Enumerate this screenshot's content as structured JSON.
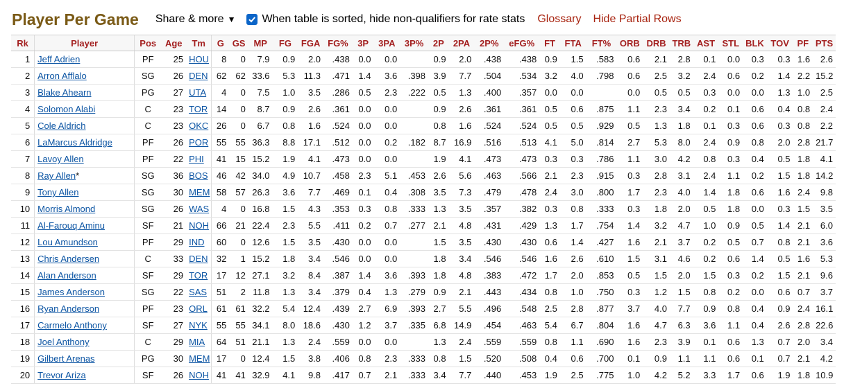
{
  "header": {
    "title": "Player Per Game",
    "share_label": "Share & more",
    "checkbox_label": "When table is sorted, hide non-qualifiers for rate stats",
    "glossary_label": "Glossary",
    "hide_partial_label": "Hide Partial Rows"
  },
  "colors": {
    "title": "#7a5a16",
    "header_text": "#a31f1f",
    "link": "#0b54a3",
    "checkbox": "#0b65c8",
    "top_link": "#a8230f"
  },
  "table": {
    "columns": [
      "Rk",
      "Player",
      "Pos",
      "Age",
      "Tm",
      "G",
      "GS",
      "MP",
      "FG",
      "FGA",
      "FG%",
      "3P",
      "3PA",
      "3P%",
      "2P",
      "2PA",
      "2P%",
      "eFG%",
      "FT",
      "FTA",
      "FT%",
      "ORB",
      "DRB",
      "TRB",
      "AST",
      "STL",
      "BLK",
      "TOV",
      "PF",
      "PTS"
    ],
    "rows": [
      [
        "1",
        "Jeff Adrien",
        "PF",
        "25",
        "HOU",
        "8",
        "0",
        "7.9",
        "0.9",
        "2.0",
        ".438",
        "0.0",
        "0.0",
        "",
        "0.9",
        "2.0",
        ".438",
        ".438",
        "0.9",
        "1.5",
        ".583",
        "0.6",
        "2.1",
        "2.8",
        "0.1",
        "0.0",
        "0.3",
        "0.3",
        "1.6",
        "2.6"
      ],
      [
        "2",
        "Arron Afflalo",
        "SG",
        "26",
        "DEN",
        "62",
        "62",
        "33.6",
        "5.3",
        "11.3",
        ".471",
        "1.4",
        "3.6",
        ".398",
        "3.9",
        "7.7",
        ".504",
        ".534",
        "3.2",
        "4.0",
        ".798",
        "0.6",
        "2.5",
        "3.2",
        "2.4",
        "0.6",
        "0.2",
        "1.4",
        "2.2",
        "15.2"
      ],
      [
        "3",
        "Blake Ahearn",
        "PG",
        "27",
        "UTA",
        "4",
        "0",
        "7.5",
        "1.0",
        "3.5",
        ".286",
        "0.5",
        "2.3",
        ".222",
        "0.5",
        "1.3",
        ".400",
        ".357",
        "0.0",
        "0.0",
        "",
        "0.0",
        "0.5",
        "0.5",
        "0.3",
        "0.0",
        "0.0",
        "1.3",
        "1.0",
        "2.5"
      ],
      [
        "4",
        "Solomon Alabi",
        "C",
        "23",
        "TOR",
        "14",
        "0",
        "8.7",
        "0.9",
        "2.6",
        ".361",
        "0.0",
        "0.0",
        "",
        "0.9",
        "2.6",
        ".361",
        ".361",
        "0.5",
        "0.6",
        ".875",
        "1.1",
        "2.3",
        "3.4",
        "0.2",
        "0.1",
        "0.6",
        "0.4",
        "0.8",
        "2.4"
      ],
      [
        "5",
        "Cole Aldrich",
        "C",
        "23",
        "OKC",
        "26",
        "0",
        "6.7",
        "0.8",
        "1.6",
        ".524",
        "0.0",
        "0.0",
        "",
        "0.8",
        "1.6",
        ".524",
        ".524",
        "0.5",
        "0.5",
        ".929",
        "0.5",
        "1.3",
        "1.8",
        "0.1",
        "0.3",
        "0.6",
        "0.3",
        "0.8",
        "2.2"
      ],
      [
        "6",
        "LaMarcus Aldridge",
        "PF",
        "26",
        "POR",
        "55",
        "55",
        "36.3",
        "8.8",
        "17.1",
        ".512",
        "0.0",
        "0.2",
        ".182",
        "8.7",
        "16.9",
        ".516",
        ".513",
        "4.1",
        "5.0",
        ".814",
        "2.7",
        "5.3",
        "8.0",
        "2.4",
        "0.9",
        "0.8",
        "2.0",
        "2.8",
        "21.7"
      ],
      [
        "7",
        "Lavoy Allen",
        "PF",
        "22",
        "PHI",
        "41",
        "15",
        "15.2",
        "1.9",
        "4.1",
        ".473",
        "0.0",
        "0.0",
        "",
        "1.9",
        "4.1",
        ".473",
        ".473",
        "0.3",
        "0.3",
        ".786",
        "1.1",
        "3.0",
        "4.2",
        "0.8",
        "0.3",
        "0.4",
        "0.5",
        "1.8",
        "4.1"
      ],
      [
        "8",
        "Ray Allen",
        "SG",
        "36",
        "BOS",
        "46",
        "42",
        "34.0",
        "4.9",
        "10.7",
        ".458",
        "2.3",
        "5.1",
        ".453",
        "2.6",
        "5.6",
        ".463",
        ".566",
        "2.1",
        "2.3",
        ".915",
        "0.3",
        "2.8",
        "3.1",
        "2.4",
        "1.1",
        "0.2",
        "1.5",
        "1.8",
        "14.2"
      ],
      [
        "9",
        "Tony Allen",
        "SG",
        "30",
        "MEM",
        "58",
        "57",
        "26.3",
        "3.6",
        "7.7",
        ".469",
        "0.1",
        "0.4",
        ".308",
        "3.5",
        "7.3",
        ".479",
        ".478",
        "2.4",
        "3.0",
        ".800",
        "1.7",
        "2.3",
        "4.0",
        "1.4",
        "1.8",
        "0.6",
        "1.6",
        "2.4",
        "9.8"
      ],
      [
        "10",
        "Morris Almond",
        "SG",
        "26",
        "WAS",
        "4",
        "0",
        "16.8",
        "1.5",
        "4.3",
        ".353",
        "0.3",
        "0.8",
        ".333",
        "1.3",
        "3.5",
        ".357",
        ".382",
        "0.3",
        "0.8",
        ".333",
        "0.3",
        "1.8",
        "2.0",
        "0.5",
        "1.8",
        "0.0",
        "0.3",
        "1.5",
        "3.5"
      ],
      [
        "11",
        "Al-Farouq Aminu",
        "SF",
        "21",
        "NOH",
        "66",
        "21",
        "22.4",
        "2.3",
        "5.5",
        ".411",
        "0.2",
        "0.7",
        ".277",
        "2.1",
        "4.8",
        ".431",
        ".429",
        "1.3",
        "1.7",
        ".754",
        "1.4",
        "3.2",
        "4.7",
        "1.0",
        "0.9",
        "0.5",
        "1.4",
        "2.1",
        "6.0"
      ],
      [
        "12",
        "Lou Amundson",
        "PF",
        "29",
        "IND",
        "60",
        "0",
        "12.6",
        "1.5",
        "3.5",
        ".430",
        "0.0",
        "0.0",
        "",
        "1.5",
        "3.5",
        ".430",
        ".430",
        "0.6",
        "1.4",
        ".427",
        "1.6",
        "2.1",
        "3.7",
        "0.2",
        "0.5",
        "0.7",
        "0.8",
        "2.1",
        "3.6"
      ],
      [
        "13",
        "Chris Andersen",
        "C",
        "33",
        "DEN",
        "32",
        "1",
        "15.2",
        "1.8",
        "3.4",
        ".546",
        "0.0",
        "0.0",
        "",
        "1.8",
        "3.4",
        ".546",
        ".546",
        "1.6",
        "2.6",
        ".610",
        "1.5",
        "3.1",
        "4.6",
        "0.2",
        "0.6",
        "1.4",
        "0.5",
        "1.6",
        "5.3"
      ],
      [
        "14",
        "Alan Anderson",
        "SF",
        "29",
        "TOR",
        "17",
        "12",
        "27.1",
        "3.2",
        "8.4",
        ".387",
        "1.4",
        "3.6",
        ".393",
        "1.8",
        "4.8",
        ".383",
        ".472",
        "1.7",
        "2.0",
        ".853",
        "0.5",
        "1.5",
        "2.0",
        "1.5",
        "0.3",
        "0.2",
        "1.5",
        "2.1",
        "9.6"
      ],
      [
        "15",
        "James Anderson",
        "SG",
        "22",
        "SAS",
        "51",
        "2",
        "11.8",
        "1.3",
        "3.4",
        ".379",
        "0.4",
        "1.3",
        ".279",
        "0.9",
        "2.1",
        ".443",
        ".434",
        "0.8",
        "1.0",
        ".750",
        "0.3",
        "1.2",
        "1.5",
        "0.8",
        "0.2",
        "0.0",
        "0.6",
        "0.7",
        "3.7"
      ],
      [
        "16",
        "Ryan Anderson",
        "PF",
        "23",
        "ORL",
        "61",
        "61",
        "32.2",
        "5.4",
        "12.4",
        ".439",
        "2.7",
        "6.9",
        ".393",
        "2.7",
        "5.5",
        ".496",
        ".548",
        "2.5",
        "2.8",
        ".877",
        "3.7",
        "4.0",
        "7.7",
        "0.9",
        "0.8",
        "0.4",
        "0.9",
        "2.4",
        "16.1"
      ],
      [
        "17",
        "Carmelo Anthony",
        "SF",
        "27",
        "NYK",
        "55",
        "55",
        "34.1",
        "8.0",
        "18.6",
        ".430",
        "1.2",
        "3.7",
        ".335",
        "6.8",
        "14.9",
        ".454",
        ".463",
        "5.4",
        "6.7",
        ".804",
        "1.6",
        "4.7",
        "6.3",
        "3.6",
        "1.1",
        "0.4",
        "2.6",
        "2.8",
        "22.6"
      ],
      [
        "18",
        "Joel Anthony",
        "C",
        "29",
        "MIA",
        "64",
        "51",
        "21.1",
        "1.3",
        "2.4",
        ".559",
        "0.0",
        "0.0",
        "",
        "1.3",
        "2.4",
        ".559",
        ".559",
        "0.8",
        "1.1",
        ".690",
        "1.6",
        "2.3",
        "3.9",
        "0.1",
        "0.6",
        "1.3",
        "0.7",
        "2.0",
        "3.4"
      ],
      [
        "19",
        "Gilbert Arenas",
        "PG",
        "30",
        "MEM",
        "17",
        "0",
        "12.4",
        "1.5",
        "3.8",
        ".406",
        "0.8",
        "2.3",
        ".333",
        "0.8",
        "1.5",
        ".520",
        ".508",
        "0.4",
        "0.6",
        ".700",
        "0.1",
        "0.9",
        "1.1",
        "1.1",
        "0.6",
        "0.1",
        "0.7",
        "2.1",
        "4.2"
      ],
      [
        "20",
        "Trevor Ariza",
        "SF",
        "26",
        "NOH",
        "41",
        "41",
        "32.9",
        "4.1",
        "9.8",
        ".417",
        "0.7",
        "2.1",
        ".333",
        "3.4",
        "7.7",
        ".440",
        ".453",
        "1.9",
        "2.5",
        ".775",
        "1.0",
        "4.2",
        "5.2",
        "3.3",
        "1.7",
        "0.6",
        "1.9",
        "1.8",
        "10.9"
      ]
    ],
    "hof_marks": {
      "8": "*"
    }
  }
}
